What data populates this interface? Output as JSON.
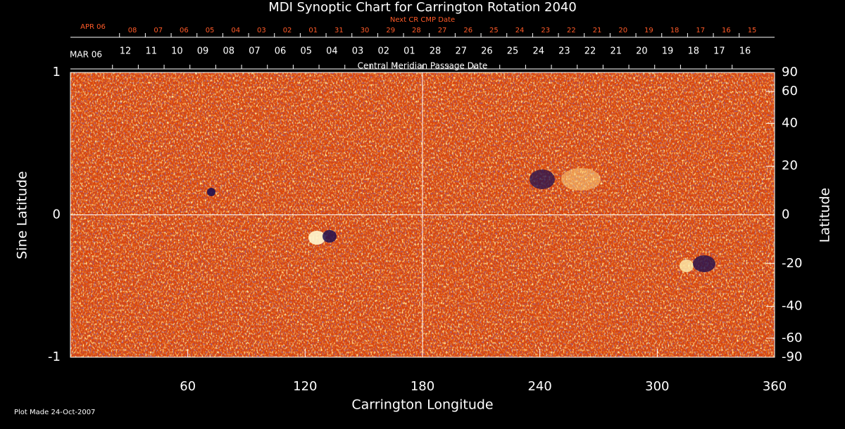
{
  "chart_data": {
    "type": "heatmap",
    "title": "MDI Synoptic Chart for Carrington Rotation 2040",
    "xlabel": "Carrington Longitude",
    "ylabel": "Sine Latitude",
    "y2label": "Latitude",
    "xlim": [
      0,
      360
    ],
    "xticks": [
      60,
      120,
      180,
      240,
      300,
      360
    ],
    "ylim": [
      -1,
      1
    ],
    "yticks": [
      -1,
      0,
      1
    ],
    "y2lim": [
      -90,
      90
    ],
    "y2scale": "sine",
    "y2ticks": [
      -90,
      -60,
      -40,
      -20,
      0,
      20,
      40,
      60,
      90
    ],
    "cmp_axis_label": "Central Meridian Passage Date",
    "month_label": "MAR 06",
    "cmp_dates": {
      "labels": [
        "12",
        "11",
        "10",
        "09",
        "08",
        "07",
        "06",
        "05",
        "04",
        "03",
        "02",
        "01",
        "28",
        "27",
        "26",
        "25",
        "24",
        "23",
        "22",
        "21",
        "20",
        "19",
        "18",
        "17",
        "16"
      ],
      "x": [
        28.1,
        41.3,
        54.5,
        67.7,
        80.9,
        94.1,
        107.3,
        120.5,
        133.7,
        146.9,
        160.1,
        173.3,
        186.5,
        199.7,
        212.9,
        226.1,
        239.3,
        252.5,
        265.7,
        278.9,
        292.1,
        305.3,
        318.5,
        331.7,
        344.9
      ]
    },
    "next_axis_label": "Next CR CMP Date",
    "next_month_label": "APR 06",
    "next_dates": {
      "labels": [
        "08",
        "07",
        "06",
        "05",
        "04",
        "03",
        "02",
        "01",
        "31",
        "30",
        "29",
        "28",
        "27",
        "26",
        "25",
        "24",
        "23",
        "22",
        "21",
        "20",
        "19",
        "18",
        "17",
        "16",
        "15"
      ],
      "x": [
        31.7,
        44.9,
        58.1,
        71.3,
        84.5,
        97.7,
        110.9,
        124.1,
        137.3,
        150.5,
        163.7,
        176.9,
        190.1,
        203.3,
        216.5,
        229.7,
        242.9,
        256.1,
        269.3,
        282.5,
        295.7,
        308.9,
        322.1,
        335.3,
        348.5
      ]
    },
    "footer": "Plot Made 24-Oct-2007"
  }
}
